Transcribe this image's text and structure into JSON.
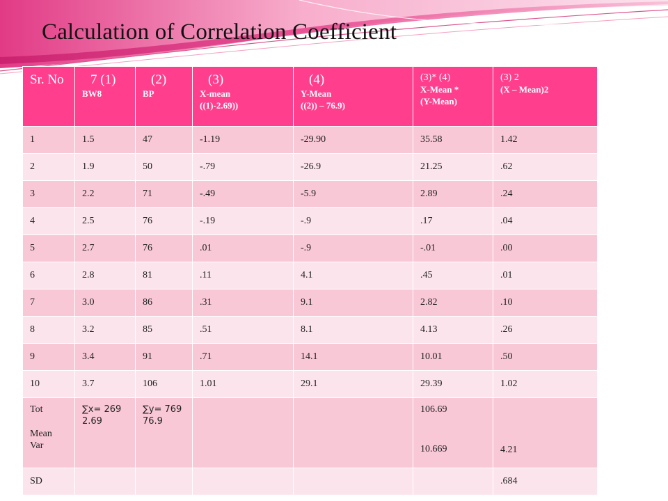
{
  "title": "Calculation of Correlation Coefficient",
  "colors": {
    "header_bg": "#ff3f8e",
    "row_odd": "#f9c8d7",
    "row_even": "#fce4ec",
    "swoosh": "#e8478f"
  },
  "headers": [
    {
      "top": "Sr. No",
      "sub": []
    },
    {
      "top": "7  (1)",
      "sub": [
        "BW8"
      ]
    },
    {
      "top": "(2)",
      "sub": [
        "BP"
      ]
    },
    {
      "top": "(3)",
      "sub": [
        "X-mean",
        "((1)-2.69))"
      ]
    },
    {
      "top": "(4)",
      "sub": [
        "Y-Mean",
        "((2)) – 76.9)"
      ]
    },
    {
      "top": "(3)* (4)",
      "sub": [
        "X-Mean *",
        "(Y-Mean)"
      ]
    },
    {
      "top": "(3) 2",
      "sub": [
        "(X – Mean)2"
      ]
    }
  ],
  "rows": [
    [
      "1",
      "1.5",
      "47",
      "-1.19",
      "-29.90",
      "35.58",
      "1.42"
    ],
    [
      "2",
      "1.9",
      "50",
      "-.79",
      "-26.9",
      "21.25",
      ".62"
    ],
    [
      "3",
      "2.2",
      "71",
      "-.49",
      "-5.9",
      "2.89",
      ".24"
    ],
    [
      "4",
      "2.5",
      "76",
      "-.19",
      "-.9",
      ".17",
      ".04"
    ],
    [
      "5",
      "2.7",
      "76",
      ".01",
      "-.9",
      "-.01",
      ".00"
    ],
    [
      "6",
      "2.8",
      "81",
      ".11",
      "4.1",
      ".45",
      ".01"
    ],
    [
      "7",
      "3.0",
      "86",
      ".31",
      "9.1",
      "2.82",
      ".10"
    ],
    [
      "8",
      "3.2",
      "85",
      ".51",
      "8.1",
      "4.13",
      ".26"
    ],
    [
      "9",
      "3.4",
      "91",
      ".71",
      "14.1",
      "10.01",
      ".50"
    ],
    [
      "10",
      "3.7",
      "106",
      "1.01",
      "29.1",
      "29.39",
      "1.02"
    ]
  ],
  "summary": {
    "labels": [
      "Tot",
      "Mean",
      "Var"
    ],
    "x_sum": "∑x= 269",
    "x_mean": "2.69",
    "y_sum": "∑y= 769",
    "y_mean": "76.9",
    "product_total": "106.69",
    "product_var": "10.669",
    "sq_var": "4.21"
  },
  "sd_row": {
    "label": "SD",
    "value": ".684"
  }
}
